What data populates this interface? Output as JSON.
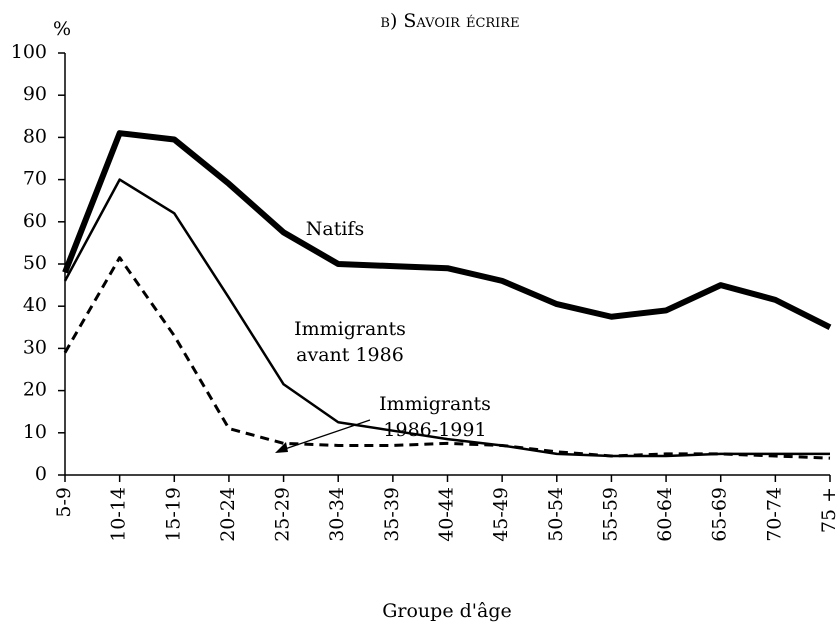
{
  "chart_data": {
    "type": "line",
    "title": "b) Savoir écrire",
    "y_label": "%",
    "x_label": "Groupe d'âge",
    "categories": [
      "5-9",
      "10-14",
      "15-19",
      "20-24",
      "25-29",
      "30-34",
      "35-39",
      "40-44",
      "45-49",
      "50-54",
      "55-59",
      "60-64",
      "65-69",
      "70-74",
      "75 +"
    ],
    "series": [
      {
        "name": "Natifs",
        "color": "#000000",
        "line_width": 6,
        "dashed": false,
        "values": [
          48,
          81,
          79.5,
          69,
          57.5,
          50,
          49.5,
          49,
          46,
          40.5,
          37.5,
          39,
          45,
          41.5,
          35
        ]
      },
      {
        "name": "Immigrants avant 1986",
        "color": "#000000",
        "line_width": 2.5,
        "dashed": false,
        "values": [
          46,
          70,
          62,
          42,
          21.5,
          12.5,
          10.5,
          8.5,
          7,
          5,
          4.5,
          4.5,
          5,
          5,
          5
        ]
      },
      {
        "name": "Immigrants 1986-1991",
        "color": "#000000",
        "line_width": 3,
        "dashed": true,
        "values": [
          29,
          51.5,
          33,
          11,
          7.5,
          7,
          7,
          7.5,
          7,
          5.5,
          4.5,
          5,
          5,
          4.5,
          4
        ]
      }
    ],
    "annotations": [
      {
        "lines": [
          "Natifs"
        ]
      },
      {
        "lines": [
          "Immigrants",
          "avant 1986"
        ]
      },
      {
        "lines": [
          "Immigrants",
          "1986-1991"
        ]
      }
    ],
    "ylim": [
      0,
      100
    ],
    "yticks": [
      0,
      10,
      20,
      30,
      40,
      50,
      60,
      70,
      80,
      90,
      100
    ],
    "grid": false
  }
}
